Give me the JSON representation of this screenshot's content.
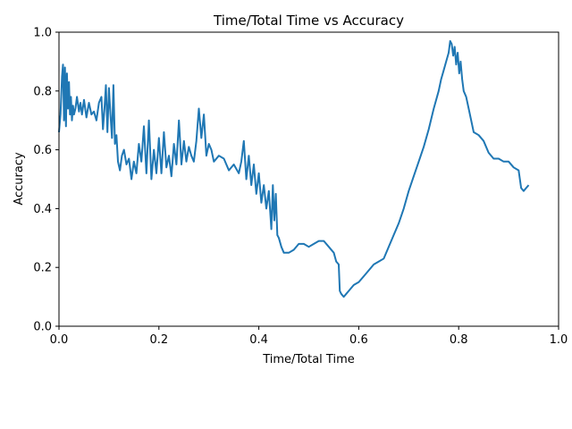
{
  "chart_data": {
    "type": "line",
    "title": "Time/Total Time vs Accuracy",
    "xlabel": "Time/Total Time",
    "ylabel": "Accuracy",
    "xlim": [
      0.0,
      1.0
    ],
    "ylim": [
      0.0,
      1.0
    ],
    "xticks": [
      "0.0",
      "0.2",
      "0.4",
      "0.6",
      "0.8",
      "1.0"
    ],
    "yticks": [
      "0.0",
      "0.2",
      "0.4",
      "0.6",
      "0.8",
      "1.0"
    ],
    "grid": false,
    "legend": "none",
    "series": [
      {
        "color": "#1f77b4",
        "x": [
          0.0,
          0.003,
          0.006,
          0.008,
          0.01,
          0.012,
          0.014,
          0.016,
          0.018,
          0.02,
          0.022,
          0.024,
          0.026,
          0.028,
          0.03,
          0.033,
          0.036,
          0.04,
          0.043,
          0.046,
          0.05,
          0.055,
          0.06,
          0.065,
          0.07,
          0.075,
          0.08,
          0.085,
          0.088,
          0.091,
          0.094,
          0.097,
          0.1,
          0.103,
          0.106,
          0.109,
          0.112,
          0.115,
          0.118,
          0.122,
          0.126,
          0.13,
          0.135,
          0.14,
          0.145,
          0.15,
          0.155,
          0.16,
          0.165,
          0.17,
          0.175,
          0.18,
          0.185,
          0.19,
          0.195,
          0.2,
          0.205,
          0.21,
          0.215,
          0.22,
          0.225,
          0.23,
          0.235,
          0.24,
          0.245,
          0.25,
          0.255,
          0.26,
          0.265,
          0.27,
          0.275,
          0.28,
          0.285,
          0.29,
          0.295,
          0.3,
          0.305,
          0.31,
          0.32,
          0.33,
          0.34,
          0.35,
          0.36,
          0.365,
          0.37,
          0.375,
          0.38,
          0.385,
          0.39,
          0.395,
          0.4,
          0.405,
          0.41,
          0.415,
          0.42,
          0.425,
          0.428,
          0.431,
          0.434,
          0.437,
          0.44,
          0.445,
          0.45,
          0.46,
          0.47,
          0.48,
          0.49,
          0.5,
          0.51,
          0.52,
          0.53,
          0.54,
          0.55,
          0.555,
          0.56,
          0.562,
          0.565,
          0.57,
          0.575,
          0.58,
          0.59,
          0.6,
          0.61,
          0.62,
          0.63,
          0.64,
          0.65,
          0.66,
          0.67,
          0.68,
          0.69,
          0.7,
          0.71,
          0.72,
          0.73,
          0.74,
          0.75,
          0.76,
          0.765,
          0.77,
          0.775,
          0.78,
          0.783,
          0.786,
          0.789,
          0.792,
          0.795,
          0.798,
          0.801,
          0.804,
          0.807,
          0.81,
          0.815,
          0.82,
          0.825,
          0.83,
          0.84,
          0.85,
          0.86,
          0.87,
          0.88,
          0.89,
          0.9,
          0.91,
          0.92,
          0.925,
          0.93,
          0.935,
          0.94
        ],
        "y": [
          0.66,
          0.72,
          0.85,
          0.89,
          0.7,
          0.88,
          0.68,
          0.86,
          0.74,
          0.83,
          0.72,
          0.78,
          0.7,
          0.75,
          0.72,
          0.74,
          0.78,
          0.73,
          0.76,
          0.72,
          0.77,
          0.71,
          0.76,
          0.72,
          0.73,
          0.7,
          0.76,
          0.78,
          0.67,
          0.74,
          0.82,
          0.66,
          0.81,
          0.72,
          0.64,
          0.82,
          0.62,
          0.65,
          0.56,
          0.53,
          0.58,
          0.6,
          0.55,
          0.57,
          0.5,
          0.56,
          0.52,
          0.62,
          0.56,
          0.68,
          0.52,
          0.7,
          0.5,
          0.6,
          0.52,
          0.64,
          0.52,
          0.66,
          0.54,
          0.58,
          0.51,
          0.62,
          0.55,
          0.7,
          0.55,
          0.63,
          0.56,
          0.61,
          0.58,
          0.56,
          0.63,
          0.74,
          0.64,
          0.72,
          0.58,
          0.62,
          0.6,
          0.56,
          0.58,
          0.57,
          0.53,
          0.55,
          0.52,
          0.56,
          0.63,
          0.5,
          0.58,
          0.48,
          0.55,
          0.45,
          0.52,
          0.42,
          0.48,
          0.4,
          0.46,
          0.33,
          0.48,
          0.36,
          0.45,
          0.31,
          0.3,
          0.27,
          0.25,
          0.25,
          0.26,
          0.28,
          0.28,
          0.27,
          0.28,
          0.29,
          0.29,
          0.27,
          0.25,
          0.22,
          0.21,
          0.12,
          0.11,
          0.1,
          0.11,
          0.12,
          0.14,
          0.15,
          0.17,
          0.19,
          0.21,
          0.22,
          0.23,
          0.27,
          0.31,
          0.35,
          0.4,
          0.46,
          0.51,
          0.56,
          0.61,
          0.67,
          0.74,
          0.8,
          0.84,
          0.87,
          0.9,
          0.93,
          0.97,
          0.96,
          0.92,
          0.95,
          0.89,
          0.93,
          0.86,
          0.9,
          0.84,
          0.8,
          0.78,
          0.74,
          0.7,
          0.66,
          0.65,
          0.63,
          0.59,
          0.57,
          0.57,
          0.56,
          0.56,
          0.54,
          0.53,
          0.47,
          0.46,
          0.47,
          0.48
        ]
      }
    ]
  }
}
